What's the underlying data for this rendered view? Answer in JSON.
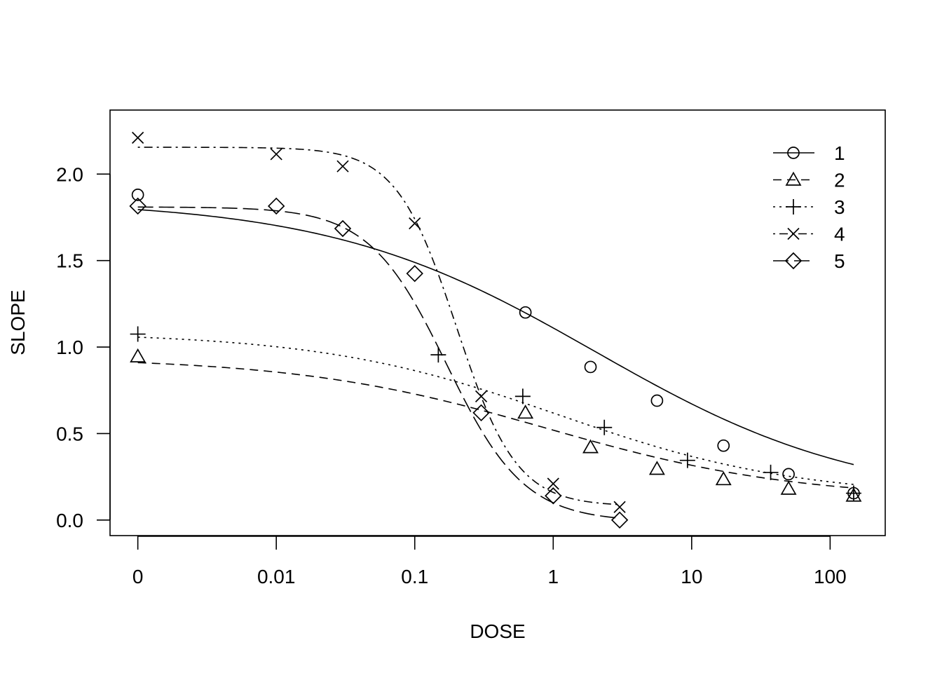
{
  "chart_data": {
    "type": "line",
    "xlabel": "DOSE",
    "ylabel": "SLOPE",
    "x_scale": "log",
    "x_ticks": [
      {
        "label": "0",
        "value": 0.001
      },
      {
        "label": "0.01",
        "value": 0.01
      },
      {
        "label": "0.1",
        "value": 0.1
      },
      {
        "label": "1",
        "value": 1
      },
      {
        "label": "10",
        "value": 10
      },
      {
        "label": "100",
        "value": 100
      }
    ],
    "y_ticks": [
      "0.0",
      "0.5",
      "1.0",
      "1.5",
      "2.0"
    ],
    "xlim": [
      0.00063,
      250
    ],
    "ylim": [
      -0.09,
      2.37
    ],
    "legend_position": "top-right",
    "series": [
      {
        "name": "1",
        "marker": "circle",
        "line_style": "solid",
        "points": [
          [
            0.001,
            1.88
          ],
          [
            0.63,
            1.2
          ],
          [
            1.86,
            0.885
          ],
          [
            5.62,
            0.69
          ],
          [
            16.98,
            0.43
          ],
          [
            50.1,
            0.265
          ],
          [
            147.9,
            0.155
          ]
        ],
        "curve": {
          "top": 1.85,
          "bottom": 0.1,
          "ec50": 2.0,
          "hill": 0.45
        }
      },
      {
        "name": "2",
        "marker": "triangle",
        "line_style": "dashed",
        "points": [
          [
            0.001,
            0.945
          ],
          [
            0.63,
            0.62
          ],
          [
            1.86,
            0.42
          ],
          [
            5.62,
            0.295
          ],
          [
            16.98,
            0.235
          ],
          [
            50.1,
            0.18
          ],
          [
            147.9,
            0.14
          ]
        ],
        "curve": {
          "top": 0.94,
          "bottom": 0.12,
          "ec50": 0.9,
          "hill": 0.48
        }
      },
      {
        "name": "3",
        "marker": "plus",
        "line_style": "dotted",
        "points": [
          [
            0.001,
            1.075
          ],
          [
            0.148,
            0.955
          ],
          [
            0.603,
            0.715
          ],
          [
            2.34,
            0.535
          ],
          [
            9.33,
            0.345
          ],
          [
            37.2,
            0.275
          ],
          [
            147.9,
            0.155
          ]
        ],
        "curve": {
          "top": 1.085,
          "bottom": 0.13,
          "ec50": 1.1,
          "hill": 0.5
        }
      },
      {
        "name": "4",
        "marker": "cross",
        "line_style": "dotdash",
        "points": [
          [
            0.001,
            2.21
          ],
          [
            0.01,
            2.115
          ],
          [
            0.0302,
            2.045
          ],
          [
            0.1,
            1.715
          ],
          [
            0.302,
            0.715
          ],
          [
            1.0,
            0.21
          ],
          [
            3.02,
            0.075
          ]
        ],
        "curve": {
          "top": 2.155,
          "bottom": 0.08,
          "ec50": 0.2,
          "hill": 2.0
        }
      },
      {
        "name": "5",
        "marker": "diamond",
        "line_style": "longdash",
        "points": [
          [
            0.001,
            1.815
          ],
          [
            0.01,
            1.815
          ],
          [
            0.0302,
            1.685
          ],
          [
            0.1,
            1.425
          ],
          [
            0.302,
            0.62
          ],
          [
            1.0,
            0.14
          ],
          [
            3.02,
            0.0
          ]
        ],
        "curve": {
          "top": 1.81,
          "bottom": -0.01,
          "ec50": 0.17,
          "hill": 1.55
        }
      }
    ]
  }
}
